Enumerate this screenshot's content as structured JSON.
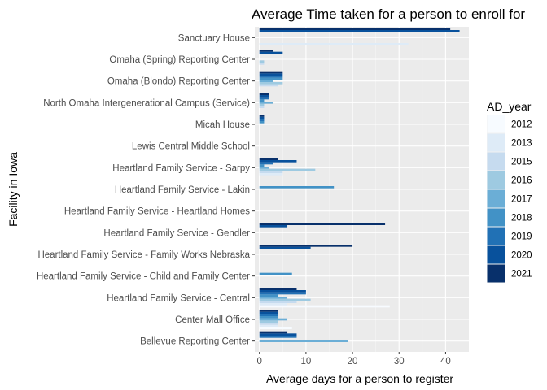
{
  "chart_data": {
    "type": "bar",
    "orientation": "horizontal",
    "grouped": true,
    "title": "Average Time taken for a person to enroll for",
    "xlabel": "Average days for a person to register",
    "ylabel": "Facility in Iowa",
    "xlim": [
      -1,
      45
    ],
    "x_ticks": [
      0,
      10,
      20,
      30,
      40
    ],
    "grid": true,
    "legend_title": "AD_year",
    "legend_position": "right",
    "categories": [
      "Sanctuary House",
      "Omaha (Spring) Reporting Center",
      "Omaha (Blondo) Reporting Center",
      "North Omaha Intergenerational Campus (Service)",
      "Micah House",
      "Lewis Central Middle School",
      "Heartland Family Service - Sarpy",
      "Heartland Family Service - Lakin",
      "Heartland Family Service - Heartland Homes",
      "Heartland Family Service - Gendler",
      "Heartland Family Service - Family Works Nebraska",
      "Heartland Family Service - Child and Family Center",
      "Heartland Family Service - Central",
      "Center Mall Office",
      "Bellevue Reporting Center"
    ],
    "series": [
      {
        "name": "2012",
        "color": "#f7fbff",
        "values": [
          null,
          null,
          null,
          null,
          null,
          null,
          null,
          null,
          null,
          null,
          null,
          null,
          28,
          7,
          null
        ]
      },
      {
        "name": "2013",
        "color": "#deebf7",
        "values": [
          32,
          null,
          null,
          null,
          null,
          null,
          5,
          null,
          null,
          null,
          null,
          null,
          6,
          4,
          null
        ]
      },
      {
        "name": "2015",
        "color": "#c6dbef",
        "values": [
          null,
          1,
          4,
          1,
          null,
          null,
          5,
          null,
          null,
          null,
          null,
          null,
          8,
          4,
          null
        ]
      },
      {
        "name": "2016",
        "color": "#9ecae1",
        "values": [
          null,
          1,
          5,
          1,
          null,
          null,
          12,
          null,
          null,
          null,
          null,
          null,
          11,
          4,
          null
        ]
      },
      {
        "name": "2017",
        "color": "#6baed6",
        "values": [
          null,
          null,
          3,
          3,
          null,
          null,
          2,
          null,
          null,
          null,
          null,
          null,
          6,
          6,
          19
        ]
      },
      {
        "name": "2018",
        "color": "#4292c6",
        "values": [
          null,
          null,
          5,
          1,
          1,
          null,
          1,
          16,
          null,
          null,
          null,
          7,
          4,
          4,
          null
        ]
      },
      {
        "name": "2019",
        "color": "#2171b5",
        "values": [
          null,
          null,
          5,
          2,
          1,
          null,
          3,
          null,
          null,
          null,
          null,
          null,
          10,
          4,
          8
        ]
      },
      {
        "name": "2020",
        "color": "#08519c",
        "values": [
          43,
          5,
          5,
          2,
          1,
          null,
          8,
          null,
          null,
          6,
          11,
          null,
          10,
          4,
          8
        ]
      },
      {
        "name": "2021",
        "color": "#08306b",
        "values": [
          41,
          3,
          5,
          2,
          1,
          null,
          4,
          null,
          null,
          27,
          20,
          null,
          8,
          4,
          6
        ]
      }
    ]
  }
}
